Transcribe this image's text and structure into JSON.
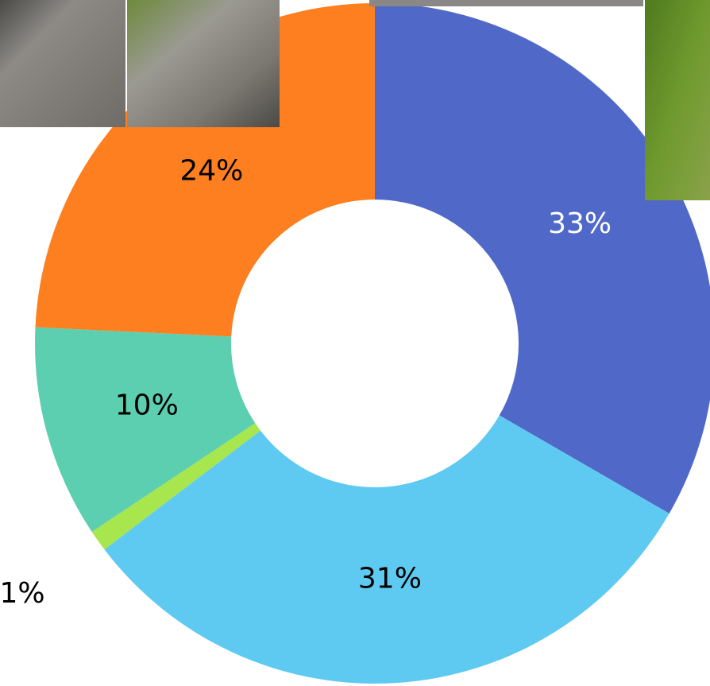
{
  "chart_data": {
    "type": "donut",
    "categories": [
      null,
      null,
      null,
      null,
      null
    ],
    "values": [
      33,
      31,
      1,
      10,
      24
    ],
    "value_labels": [
      "33%",
      "31%",
      "1%",
      "10%",
      "24%"
    ],
    "colors": [
      "#5068c8",
      "#5fcaf1",
      "#a8e64e",
      "#5ccfb0",
      "#fd7f1f"
    ],
    "label_colors": [
      "#ffffff",
      "#000000",
      "#000000",
      "#000000",
      "#000000"
    ]
  }
}
